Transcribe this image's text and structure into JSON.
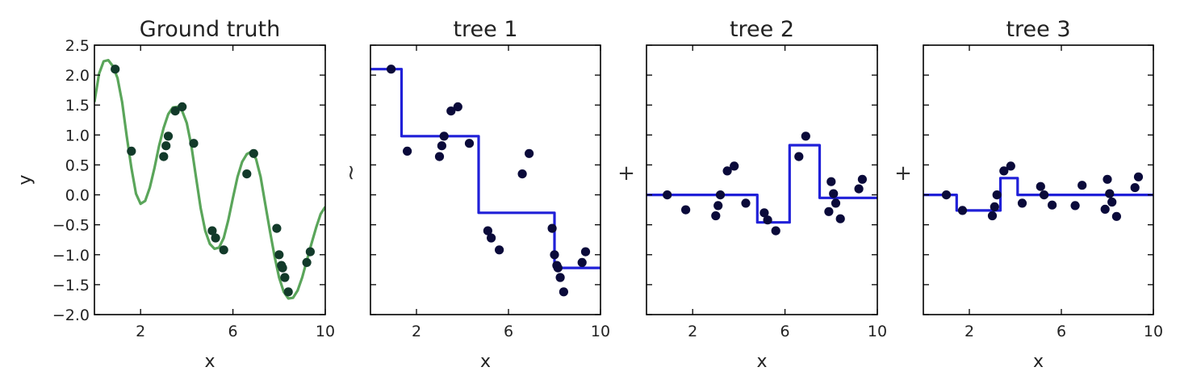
{
  "ylabel": "y",
  "operators": [
    "~",
    "+",
    "+"
  ],
  "colors": {
    "ground_truth_curve": "#5aa55a",
    "tree_step": "#2020d8",
    "points": "#0a0a3a",
    "points_gt": "#123a2a",
    "axes": "#000000"
  },
  "chart_data": [
    {
      "type": "line",
      "title": "Ground truth",
      "xlabel": "x",
      "ylabel": "y",
      "xlim": [
        0,
        10
      ],
      "ylim": [
        -2.0,
        2.5
      ],
      "xticks": [
        2,
        6,
        10
      ],
      "yticks": [
        -2.0,
        -1.5,
        -1.0,
        -0.5,
        0.0,
        0.5,
        1.0,
        1.5,
        2.0,
        2.5
      ],
      "ytick_labels": [
        "−2.0",
        "−1.5",
        "−1.0",
        "−0.5",
        "0.0",
        "0.5",
        "1.0",
        "1.5",
        "2.0",
        "2.5"
      ],
      "grid": false,
      "series": [
        {
          "kind": "curve",
          "x": [
            0.0,
            0.2,
            0.4,
            0.6,
            0.8,
            1.0,
            1.2,
            1.4,
            1.6,
            1.8,
            2.0,
            2.2,
            2.4,
            2.6,
            2.8,
            3.0,
            3.2,
            3.4,
            3.6,
            3.8,
            4.0,
            4.2,
            4.4,
            4.6,
            4.8,
            5.0,
            5.2,
            5.4,
            5.6,
            5.8,
            6.0,
            6.2,
            6.4,
            6.6,
            6.8,
            7.0,
            7.2,
            7.4,
            7.6,
            7.8,
            8.0,
            8.2,
            8.4,
            8.6,
            8.8,
            9.0,
            9.2,
            9.4,
            9.6,
            9.8,
            10.0
          ],
          "y": [
            1.55,
            2.02,
            2.23,
            2.25,
            2.15,
            1.95,
            1.55,
            0.98,
            0.45,
            0.02,
            -0.15,
            -0.1,
            0.12,
            0.45,
            0.82,
            1.12,
            1.35,
            1.46,
            1.47,
            1.4,
            1.2,
            0.82,
            0.3,
            -0.22,
            -0.6,
            -0.82,
            -0.9,
            -0.88,
            -0.72,
            -0.42,
            -0.05,
            0.3,
            0.55,
            0.68,
            0.72,
            0.6,
            0.3,
            -0.15,
            -0.6,
            -1.02,
            -1.38,
            -1.62,
            -1.73,
            -1.72,
            -1.6,
            -1.38,
            -1.1,
            -0.82,
            -0.55,
            -0.32,
            -0.2
          ]
        },
        {
          "kind": "points",
          "x": [
            0.9,
            1.6,
            3.0,
            3.1,
            3.2,
            3.5,
            3.8,
            4.3,
            5.1,
            5.25,
            5.6,
            6.6,
            6.9,
            7.9,
            8.0,
            8.1,
            8.15,
            8.25,
            8.4,
            9.2,
            9.35
          ],
          "y": [
            2.1,
            0.73,
            0.64,
            0.82,
            0.98,
            1.4,
            1.47,
            0.86,
            -0.6,
            -0.72,
            -0.92,
            0.35,
            0.69,
            -0.56,
            -1.0,
            -1.18,
            -1.22,
            -1.38,
            -1.62,
            -1.13,
            -0.95
          ]
        }
      ]
    },
    {
      "type": "line",
      "title": "tree 1",
      "xlabel": "x",
      "xlim": [
        0,
        10
      ],
      "ylim": [
        -2.0,
        2.5
      ],
      "xticks": [
        2,
        6,
        10
      ],
      "grid": false,
      "series": [
        {
          "kind": "step",
          "x": [
            0.0,
            1.35,
            1.35,
            4.7,
            4.7,
            8.0,
            8.0,
            10.0
          ],
          "y": [
            2.1,
            2.1,
            0.98,
            0.98,
            -0.3,
            -0.3,
            -1.22,
            -1.22
          ]
        },
        {
          "kind": "points",
          "x": [
            0.9,
            1.6,
            3.0,
            3.1,
            3.2,
            3.5,
            3.8,
            4.3,
            5.1,
            5.25,
            5.6,
            6.6,
            6.9,
            7.9,
            8.0,
            8.1,
            8.15,
            8.25,
            8.4,
            9.2,
            9.35
          ],
          "y": [
            2.1,
            0.73,
            0.64,
            0.82,
            0.98,
            1.4,
            1.47,
            0.86,
            -0.6,
            -0.72,
            -0.92,
            0.35,
            0.69,
            -0.56,
            -1.0,
            -1.18,
            -1.22,
            -1.38,
            -1.62,
            -1.13,
            -0.95
          ]
        }
      ]
    },
    {
      "type": "line",
      "title": "tree 2",
      "xlabel": "x",
      "xlim": [
        0,
        10
      ],
      "ylim": [
        -2.0,
        2.5
      ],
      "xticks": [
        2,
        6,
        10
      ],
      "grid": false,
      "series": [
        {
          "kind": "step",
          "x": [
            0.0,
            4.8,
            4.8,
            6.2,
            6.2,
            7.5,
            7.5,
            10.0
          ],
          "y": [
            0.0,
            0.0,
            -0.46,
            -0.46,
            0.83,
            0.83,
            -0.05,
            -0.05
          ]
        },
        {
          "kind": "points",
          "x": [
            0.9,
            1.7,
            3.0,
            3.1,
            3.2,
            3.5,
            3.8,
            4.3,
            5.1,
            5.25,
            5.6,
            6.6,
            6.9,
            7.9,
            8.0,
            8.1,
            8.2,
            8.4,
            9.2,
            9.35
          ],
          "y": [
            0.0,
            -0.25,
            -0.35,
            -0.18,
            0.0,
            0.4,
            0.48,
            -0.14,
            -0.3,
            -0.42,
            -0.6,
            0.64,
            0.98,
            -0.28,
            0.22,
            0.02,
            -0.14,
            -0.4,
            0.1,
            0.26
          ]
        }
      ]
    },
    {
      "type": "line",
      "title": "tree 3",
      "xlabel": "x",
      "xlim": [
        0,
        10
      ],
      "ylim": [
        -2.0,
        2.5
      ],
      "xticks": [
        2,
        6,
        10
      ],
      "grid": false,
      "series": [
        {
          "kind": "step",
          "x": [
            0.0,
            1.45,
            1.45,
            3.35,
            3.35,
            4.1,
            4.1,
            10.0
          ],
          "y": [
            0.0,
            0.0,
            -0.26,
            -0.26,
            0.28,
            0.28,
            0.0,
            0.0
          ]
        },
        {
          "kind": "points",
          "x": [
            1.0,
            1.7,
            3.0,
            3.1,
            3.2,
            3.5,
            3.8,
            4.3,
            5.1,
            5.25,
            5.6,
            6.6,
            6.9,
            7.9,
            8.0,
            8.1,
            8.2,
            8.4,
            9.2,
            9.35
          ],
          "y": [
            0.0,
            -0.26,
            -0.35,
            -0.2,
            0.0,
            0.4,
            0.48,
            -0.14,
            0.14,
            0.0,
            -0.17,
            -0.18,
            0.16,
            -0.24,
            0.26,
            0.02,
            -0.12,
            -0.36,
            0.12,
            0.3
          ]
        }
      ]
    }
  ]
}
